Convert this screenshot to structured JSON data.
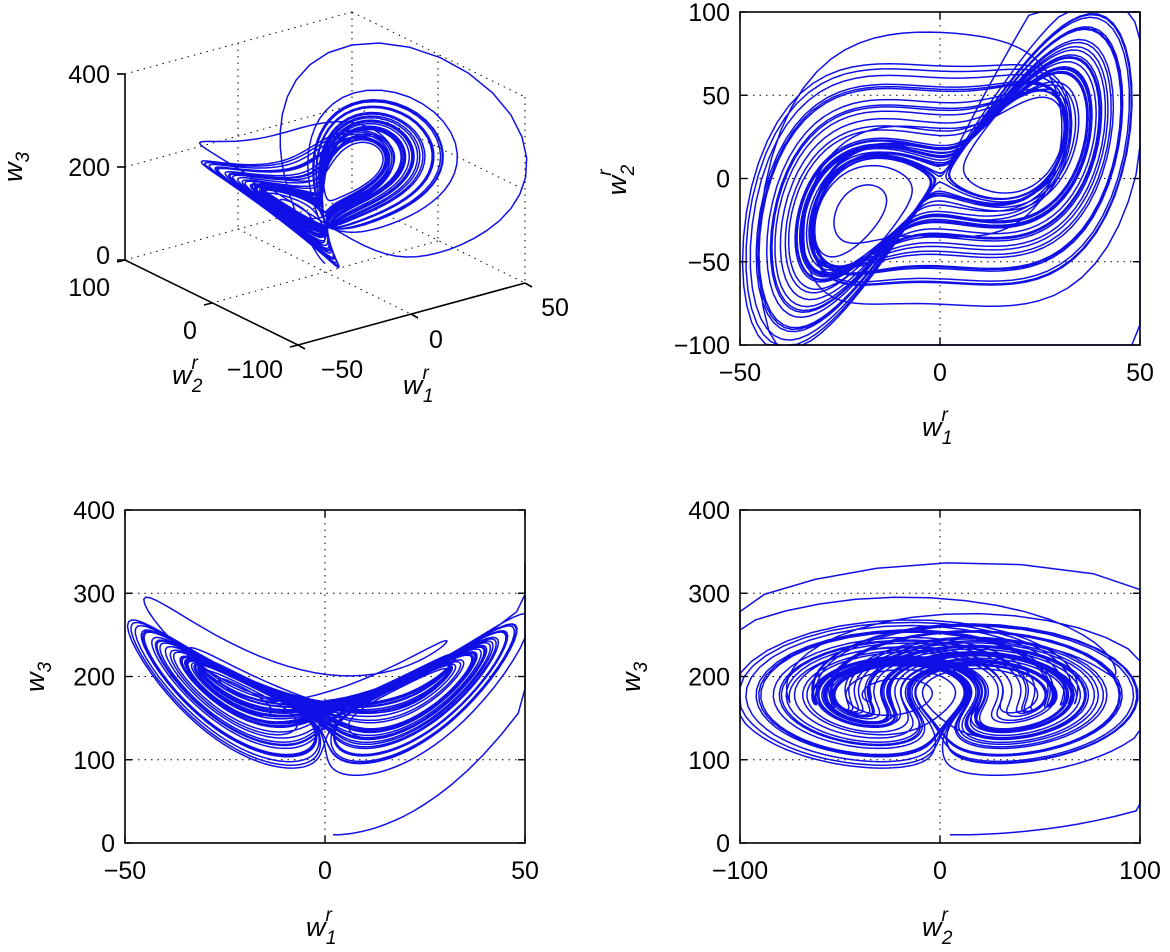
{
  "chart_data": [
    {
      "id": "p3d",
      "type": "line",
      "projection": "3d",
      "ticks": {
        "w1": [
          "−50",
          "0",
          "50"
        ],
        "w2": [
          "−100",
          "0",
          "100"
        ],
        "w3": [
          "0",
          "200",
          "400"
        ]
      },
      "x_label": {
        "base": "w",
        "sup": "r",
        "sub": "1"
      },
      "y_label": {
        "base": "w",
        "sup": "r",
        "sub": "2"
      },
      "z_label": {
        "base": "w",
        "sup": "",
        "sub": "3"
      },
      "color": "#1010e6",
      "grid": true
    },
    {
      "id": "p12",
      "type": "line",
      "xlim": [
        -50,
        50
      ],
      "ylim": [
        -100,
        100
      ],
      "x_ticks": [
        "−50",
        "0",
        "50"
      ],
      "y_ticks": [
        "−100",
        "−50",
        "0",
        "50",
        "100"
      ],
      "x_label": {
        "base": "w",
        "sup": "r",
        "sub": "1"
      },
      "y_label": {
        "base": "w",
        "sup": "r",
        "sub": "2"
      },
      "color": "#1010e6",
      "grid": true
    },
    {
      "id": "p13",
      "type": "line",
      "xlim": [
        -50,
        50
      ],
      "ylim": [
        0,
        400
      ],
      "x_ticks": [
        "−50",
        "0",
        "50"
      ],
      "y_ticks": [
        "0",
        "100",
        "200",
        "300",
        "400"
      ],
      "x_label": {
        "base": "w",
        "sup": "r",
        "sub": "1"
      },
      "y_label": {
        "base": "w",
        "sup": "",
        "sub": "3"
      },
      "color": "#1010e6",
      "grid": true
    },
    {
      "id": "p23",
      "type": "line",
      "xlim": [
        -100,
        100
      ],
      "ylim": [
        0,
        400
      ],
      "x_ticks": [
        "−100",
        "0",
        "100"
      ],
      "y_ticks": [
        "0",
        "100",
        "200",
        "300",
        "400"
      ],
      "x_label": {
        "base": "w",
        "sup": "r",
        "sub": "2"
      },
      "y_label": {
        "base": "w",
        "sup": "",
        "sub": "3"
      },
      "color": "#1010e6",
      "grid": true
    }
  ]
}
